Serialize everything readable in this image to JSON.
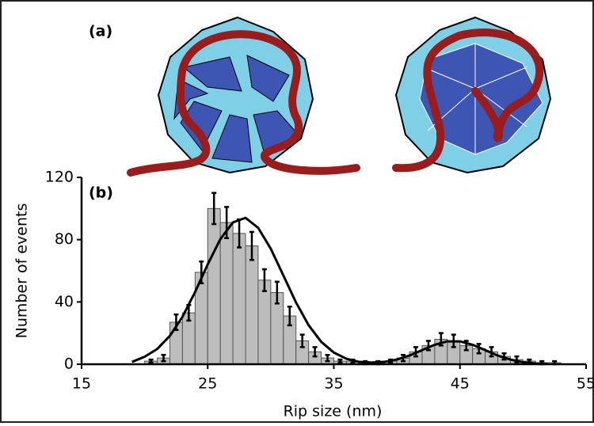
{
  "panel_a_label": "(a)",
  "chart_data": {
    "type": "histogram",
    "panel_label": "(b)",
    "x_label": "Rip size (nm)",
    "y_label": "Number of events",
    "bins": [
      20,
      21,
      22,
      23,
      24,
      25,
      26,
      27,
      28,
      29,
      30,
      31,
      32,
      33,
      34,
      35,
      36,
      37,
      38,
      39,
      40,
      41,
      42,
      43,
      44,
      45,
      46,
      47,
      48,
      49,
      50,
      51,
      52,
      53
    ],
    "values": [
      2,
      4,
      27,
      33,
      59,
      100,
      91,
      84,
      76,
      54,
      46,
      31,
      15,
      8,
      4,
      2,
      2,
      1,
      1,
      2,
      4,
      8,
      12,
      16,
      15,
      12,
      10,
      8,
      5,
      3,
      2,
      1,
      1
    ],
    "errors": [
      1,
      2,
      5,
      5,
      7,
      10,
      10,
      9,
      9,
      7,
      7,
      6,
      4,
      3,
      2,
      1,
      1,
      1,
      1,
      1,
      2,
      3,
      3,
      4,
      4,
      3,
      3,
      3,
      2,
      2,
      1,
      1,
      1
    ],
    "color": "#bdbdbd",
    "fit": {
      "x": [
        19,
        20,
        21,
        22,
        23,
        24,
        25,
        26,
        27,
        28,
        29,
        30,
        31,
        32,
        33,
        34,
        35,
        36,
        37,
        38,
        39,
        40,
        41,
        42,
        43,
        44,
        45,
        46,
        47,
        48,
        49,
        50,
        51,
        52
      ],
      "values": [
        1.5,
        4.8,
        9.8,
        18.2,
        30.5,
        46.4,
        64.1,
        80.3,
        91.1,
        94,
        87.6,
        74.2,
        57,
        39.7,
        25.1,
        14.4,
        7.5,
        3.5,
        1.5,
        1.1,
        1.5,
        3,
        5.6,
        9.1,
        12.5,
        14.7,
        14.7,
        12.5,
        9.1,
        5.6,
        3,
        1.3,
        0.5,
        0.2
      ],
      "color": "#000000"
    },
    "xlim": [
      15,
      55
    ],
    "xticks": [
      15,
      25,
      35,
      45,
      55
    ],
    "ylim": [
      0,
      120
    ],
    "yticks": [
      0,
      40,
      80,
      120
    ]
  }
}
